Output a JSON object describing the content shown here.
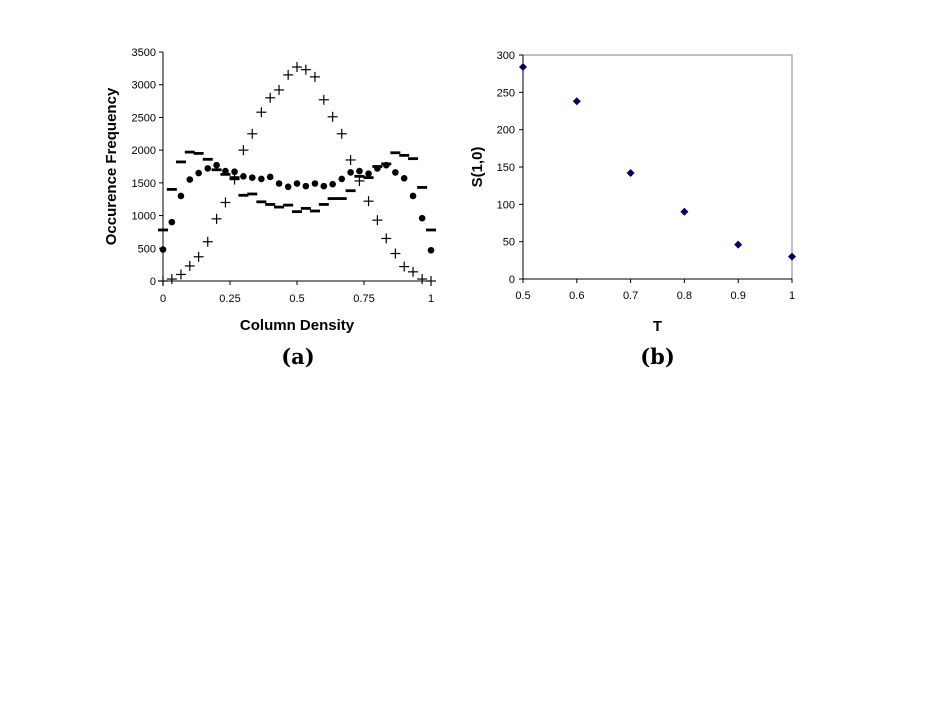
{
  "chart_data": [
    {
      "type": "scatter",
      "panel_label": "(a)",
      "xlabel": "Column Density",
      "ylabel": "Occurence Frequency",
      "xlim": [
        0,
        1
      ],
      "ylim": [
        0,
        3500
      ],
      "xticks": [
        "0",
        "0.25",
        "0.5",
        "0.75",
        "1"
      ],
      "yticks": [
        "0",
        "500",
        "1000",
        "1500",
        "2000",
        "2500",
        "3000",
        "3500"
      ],
      "grid": false,
      "series": [
        {
          "marker": "plus",
          "x": [
            0,
            0.033,
            0.067,
            0.1,
            0.133,
            0.167,
            0.2,
            0.233,
            0.267,
            0.3,
            0.333,
            0.367,
            0.4,
            0.433,
            0.467,
            0.5,
            0.533,
            0.567,
            0.6,
            0.633,
            0.667,
            0.7,
            0.733,
            0.767,
            0.8,
            0.833,
            0.867,
            0.9,
            0.933,
            0.967,
            1
          ],
          "y": [
            0,
            30,
            100,
            230,
            370,
            600,
            950,
            1200,
            1550,
            2000,
            2250,
            2580,
            2800,
            2920,
            3150,
            3270,
            3230,
            3120,
            2770,
            2510,
            2250,
            1850,
            1530,
            1220,
            930,
            650,
            420,
            220,
            140,
            30,
            0
          ]
        },
        {
          "marker": "circle",
          "x": [
            0,
            0.033,
            0.067,
            0.1,
            0.133,
            0.167,
            0.2,
            0.233,
            0.267,
            0.3,
            0.333,
            0.367,
            0.4,
            0.433,
            0.467,
            0.5,
            0.533,
            0.567,
            0.6,
            0.633,
            0.667,
            0.7,
            0.733,
            0.767,
            0.8,
            0.833,
            0.867,
            0.9,
            0.933,
            0.967,
            1
          ],
          "y": [
            480,
            900,
            1300,
            1550,
            1650,
            1720,
            1770,
            1680,
            1670,
            1600,
            1580,
            1560,
            1590,
            1490,
            1440,
            1490,
            1450,
            1490,
            1450,
            1480,
            1560,
            1660,
            1680,
            1640,
            1720,
            1770,
            1660,
            1570,
            1300,
            960,
            470
          ]
        },
        {
          "marker": "dash",
          "x": [
            0,
            0.033,
            0.067,
            0.1,
            0.133,
            0.167,
            0.2,
            0.233,
            0.267,
            0.3,
            0.333,
            0.367,
            0.4,
            0.433,
            0.467,
            0.5,
            0.533,
            0.567,
            0.6,
            0.633,
            0.667,
            0.7,
            0.733,
            0.767,
            0.8,
            0.833,
            0.867,
            0.9,
            0.933,
            0.967,
            1
          ],
          "y": [
            780,
            1400,
            1820,
            1970,
            1950,
            1860,
            1700,
            1630,
            1580,
            1310,
            1330,
            1210,
            1170,
            1130,
            1160,
            1060,
            1110,
            1070,
            1170,
            1260,
            1260,
            1380,
            1600,
            1580,
            1750,
            1790,
            1960,
            1920,
            1870,
            1430,
            780
          ]
        }
      ]
    },
    {
      "type": "scatter",
      "panel_label": "(b)",
      "xlabel": "T",
      "ylabel": "S(1,0)",
      "xlim": [
        0.5,
        1
      ],
      "ylim": [
        0,
        300
      ],
      "xticks": [
        "0.5",
        "0.6",
        "0.7",
        "0.8",
        "0.9",
        "1"
      ],
      "yticks": [
        "0",
        "50",
        "100",
        "150",
        "200",
        "250",
        "300"
      ],
      "grid": false,
      "marker_color": "#000066",
      "series": [
        {
          "marker": "diamond",
          "x": [
            0.5,
            0.6,
            0.7,
            0.8,
            0.9,
            1.0
          ],
          "y": [
            284,
            238,
            142,
            90,
            46,
            30
          ]
        }
      ]
    }
  ]
}
